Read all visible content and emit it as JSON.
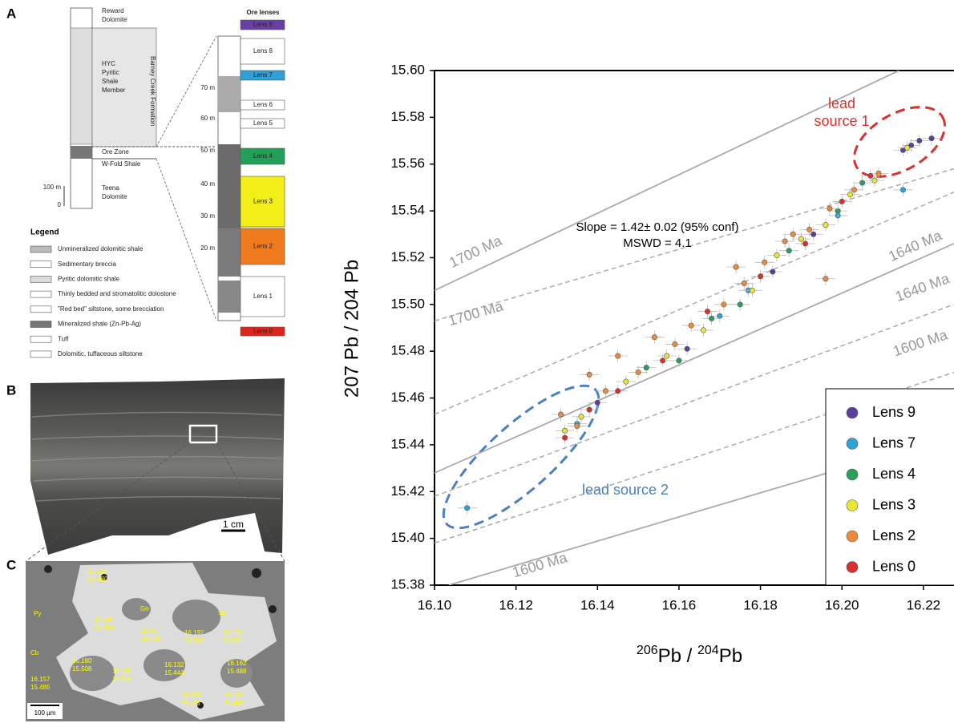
{
  "panel_a": {
    "label": "A",
    "units": [
      {
        "lines": [
          "Reward",
          "Dolomite"
        ]
      },
      {
        "lines": [
          "HYC",
          "Pyritic",
          "Shale",
          "Member"
        ]
      },
      {
        "lines": [
          "Ore Zone"
        ]
      },
      {
        "lines": [
          "W-Fold Shale"
        ]
      },
      {
        "lines": [
          "Teena",
          "Dolomite"
        ]
      }
    ],
    "formation": "Barney Creek Formation",
    "scale": [
      "100 m",
      "0"
    ],
    "legend_title": "Legend",
    "legend_items": [
      "Unmineralized dolomitic shale",
      "Sedimentary breccia",
      "Pyritic dolomitic shale",
      "Thinly bedded and stromatolitic dolostone",
      "\"Red bed\" siltstone, some brecciation",
      "Mineralized shale (Zn-Pb-Ag)",
      "Tuff",
      "Dolomitic, tuffaceous siltstone"
    ],
    "lenses_title": "Ore lenses",
    "lenses": [
      "Lens 9",
      "Lens 8",
      "Lens 7",
      "Lens 6",
      "Lens 5",
      "Lens 4",
      "Lens 3",
      "Lens 2",
      "Lens 1",
      "Lens 0"
    ],
    "depths": [
      "70 m",
      "60 m",
      "50 m",
      "40 m",
      "30 m",
      "20 m"
    ]
  },
  "panel_b": {
    "label": "B",
    "scale": "1 cm"
  },
  "panel_c": {
    "label": "C",
    "minerals": [
      "Gn",
      "Py",
      "Sp",
      "Cb"
    ],
    "measurements": [
      [
        "16.153",
        "15.480"
      ],
      [
        "16.140",
        "15.461"
      ],
      [
        "16.177",
        "15.503"
      ],
      [
        "16.192",
        "15.533"
      ],
      [
        "16.191",
        "15.529"
      ],
      [
        "16.180",
        "15.508"
      ],
      [
        "16.180",
        "15.518"
      ],
      [
        "16.132",
        "15.444"
      ],
      [
        "16.162",
        "15.488"
      ],
      [
        "16.157",
        "15.485"
      ],
      [
        "16.168",
        "15.475"
      ],
      [
        "16.162",
        "15.486"
      ]
    ],
    "scale": "100 µm"
  },
  "chart_data": {
    "type": "scatter",
    "x_label": {
      "m1": "206",
      "e1": "Pb",
      "sep": " / ",
      "m2": "204",
      "e2": "Pb"
    },
    "y_label": "207 Pb / 204 Pb",
    "xlim": [
      16.1,
      16.2275
    ],
    "ylim": [
      15.38,
      15.6
    ],
    "xticks": [
      {
        "value": 16.1,
        "label": "16.10"
      },
      16.12,
      16.14,
      16.16,
      16.18,
      {
        "value": 16.2,
        "label": "16.20"
      },
      16.22
    ],
    "yticks": [
      15.38,
      {
        "value": 15.4,
        "label": "15.40"
      },
      15.42,
      15.44,
      15.46,
      15.48,
      {
        "value": 15.5,
        "label": "15.50"
      },
      15.52,
      15.54,
      15.56,
      15.58,
      {
        "value": 15.6,
        "label": "15.60"
      }
    ],
    "reference_lines": [
      {
        "label": "1700 Ma",
        "style": "solid",
        "x": [
          16.1,
          16.214
        ],
        "y": [
          15.506,
          15.6
        ]
      },
      {
        "label": "1700 Ma",
        "style": "dashed",
        "x": [
          16.1,
          16.2275
        ],
        "y": [
          15.493,
          15.558
        ]
      },
      {
        "style": "dashed",
        "x": [
          16.1,
          16.2275
        ],
        "y": [
          15.453,
          15.548
        ]
      },
      {
        "label": "1640 Ma",
        "style": "solid",
        "x": [
          16.1,
          16.2275
        ],
        "y": [
          15.428,
          15.526
        ]
      },
      {
        "label": "1640 Ma",
        "style": "dashed",
        "x": [
          16.1,
          16.2275
        ],
        "y": [
          15.418,
          15.5
        ]
      },
      {
        "label": "1600 Ma",
        "style": "dashed",
        "x": [
          16.1,
          16.2275
        ],
        "y": [
          15.398,
          15.471
        ]
      },
      {
        "label": "1600 Ma",
        "style": "solid",
        "x": [
          16.1035,
          16.2275
        ],
        "y": [
          15.38,
          15.444
        ]
      }
    ],
    "annotations": {
      "slope": "Slope = 1.42± 0.02 (95% conf)",
      "mswd": "MSWD = 4.1",
      "source1": [
        "lead",
        "source 1"
      ],
      "source2": "lead source 2"
    },
    "series": [
      {
        "name": "Lens 9",
        "color": "#5b3f9e",
        "x": [
          16.219,
          16.215,
          16.217,
          16.222,
          16.14,
          16.162,
          16.183,
          16.193
        ],
        "values": [
          15.57,
          15.566,
          15.568,
          15.571,
          15.458,
          15.481,
          15.514,
          15.53
        ]
      },
      {
        "name": "Lens 7",
        "color": "#2ea3d8",
        "x": [
          16.215,
          16.108,
          16.135,
          16.177,
          16.17,
          16.199
        ],
        "values": [
          15.549,
          15.413,
          15.449,
          15.506,
          15.495,
          15.538
        ]
      },
      {
        "name": "Lens 4",
        "color": "#27a05c",
        "x": [
          16.16,
          16.175,
          16.187,
          16.199,
          16.205,
          16.152,
          16.168
        ],
        "values": [
          15.476,
          15.5,
          15.523,
          15.54,
          15.552,
          15.473,
          15.494
        ]
      },
      {
        "name": "Lens 3",
        "color": "#e9e637",
        "x": [
          16.136,
          16.147,
          16.157,
          16.166,
          16.178,
          16.19,
          16.202,
          16.208,
          16.216,
          16.196,
          16.184,
          16.132
        ],
        "values": [
          15.452,
          15.467,
          15.478,
          15.489,
          15.506,
          15.528,
          15.547,
          15.553,
          15.567,
          15.534,
          15.521,
          15.446
        ]
      },
      {
        "name": "Lens 2",
        "color": "#ee8a3d",
        "x": [
          16.131,
          16.135,
          16.142,
          16.15,
          16.154,
          16.159,
          16.163,
          16.171,
          16.176,
          16.181,
          16.186,
          16.192,
          16.197,
          16.203,
          16.209,
          16.196,
          16.138,
          16.145,
          16.174,
          16.188
        ],
        "values": [
          15.453,
          15.448,
          15.463,
          15.471,
          15.486,
          15.483,
          15.491,
          15.5,
          15.509,
          15.518,
          15.527,
          15.532,
          15.541,
          15.549,
          15.556,
          15.511,
          15.47,
          15.478,
          15.516,
          15.53
        ]
      },
      {
        "name": "Lens 0",
        "color": "#d8322e",
        "x": [
          16.132,
          16.138,
          16.156,
          16.167,
          16.18,
          16.191,
          16.2,
          16.207,
          16.145
        ],
        "values": [
          15.443,
          15.455,
          15.476,
          15.497,
          15.512,
          15.526,
          15.544,
          15.555,
          15.463
        ]
      }
    ]
  }
}
